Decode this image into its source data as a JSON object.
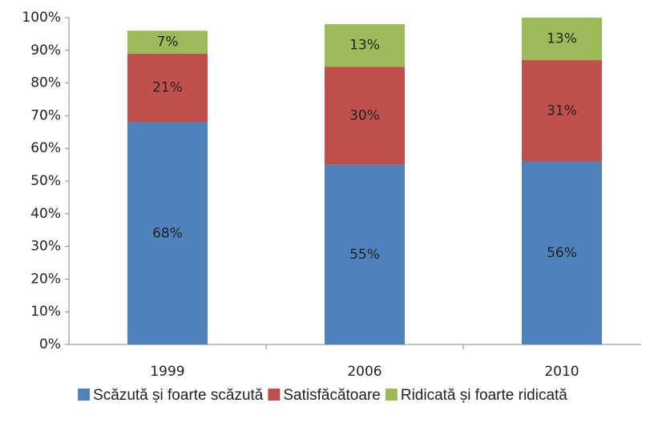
{
  "chart_data": {
    "type": "stacked-bar",
    "categories": [
      "1999",
      "2006",
      "2010"
    ],
    "series": [
      {
        "name": "Scăzută și foarte scăzută",
        "color": "#4f81bd",
        "values": [
          68,
          55,
          56
        ],
        "value_labels": [
          "68%",
          "55%",
          "56%"
        ]
      },
      {
        "name": "Satisfăcătoare",
        "color": "#c0504d",
        "values": [
          21,
          30,
          31
        ],
        "value_labels": [
          "21%",
          "30%",
          "31%"
        ]
      },
      {
        "name": "Ridicată și foarte ridicată",
        "color": "#9bbb59",
        "values": [
          7,
          13,
          13
        ],
        "value_labels": [
          "7%",
          "13%",
          "13%"
        ]
      }
    ],
    "ylim": [
      0,
      100
    ],
    "yticks": [
      {
        "value": 0,
        "label": "0%"
      },
      {
        "value": 10,
        "label": "10%"
      },
      {
        "value": 20,
        "label": "20%"
      },
      {
        "value": 30,
        "label": "30%"
      },
      {
        "value": 40,
        "label": "40%"
      },
      {
        "value": 50,
        "label": "50%"
      },
      {
        "value": 60,
        "label": "60%"
      },
      {
        "value": 70,
        "label": "70%"
      },
      {
        "value": 80,
        "label": "80%"
      },
      {
        "value": 90,
        "label": "90%"
      },
      {
        "value": 100,
        "label": "100%"
      }
    ],
    "legend": "bottom"
  }
}
